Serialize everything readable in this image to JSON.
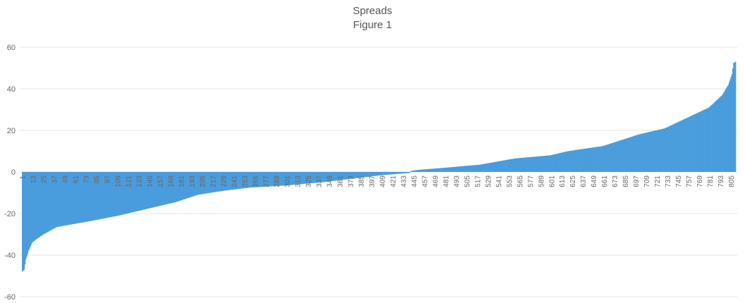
{
  "chart_data": {
    "type": "bar",
    "title": "Spreads",
    "subtitle": "Figure 1",
    "xlabel": "",
    "ylabel": "",
    "bar_color": "#4a9ddc",
    "grid": true,
    "ylim": [
      -60,
      60
    ],
    "yticks": [
      -60,
      -40,
      -20,
      0,
      20,
      40,
      60
    ],
    "n_categories": 810,
    "category_start": 1,
    "xtick_labels": [
      "1",
      "13",
      "25",
      "37",
      "49",
      "61",
      "73",
      "85",
      "97",
      "109",
      "121",
      "133",
      "145",
      "157",
      "169",
      "181",
      "193",
      "205",
      "217",
      "229",
      "241",
      "253",
      "265",
      "277",
      "289",
      "301",
      "313",
      "325",
      "337",
      "349",
      "361",
      "373",
      "385",
      "397",
      "409",
      "421",
      "433",
      "445",
      "457",
      "469",
      "481",
      "493",
      "505",
      "517",
      "529",
      "541",
      "553",
      "565",
      "577",
      "589",
      "601",
      "613",
      "625",
      "637",
      "649",
      "661",
      "673",
      "685",
      "697",
      "709",
      "721",
      "733",
      "745",
      "757",
      "769",
      "781",
      "793",
      "805"
    ],
    "sorted_value_profile": [
      [
        1,
        -48
      ],
      [
        3,
        -47
      ],
      [
        5,
        -42
      ],
      [
        8,
        -38
      ],
      [
        12,
        -34
      ],
      [
        18,
        -32
      ],
      [
        25,
        -30
      ],
      [
        40,
        -26.5
      ],
      [
        60,
        -25
      ],
      [
        80,
        -23.5
      ],
      [
        110,
        -21
      ],
      [
        150,
        -17
      ],
      [
        175,
        -14.5
      ],
      [
        200,
        -11
      ],
      [
        230,
        -9
      ],
      [
        260,
        -7.5
      ],
      [
        300,
        -6.5
      ],
      [
        340,
        -5
      ],
      [
        380,
        -3
      ],
      [
        410,
        -1.5
      ],
      [
        440,
        -0.5
      ],
      [
        442,
        0.5
      ],
      [
        450,
        1
      ],
      [
        480,
        2
      ],
      [
        520,
        3.5
      ],
      [
        560,
        6.5
      ],
      [
        600,
        8
      ],
      [
        620,
        10
      ],
      [
        660,
        12.5
      ],
      [
        700,
        18
      ],
      [
        730,
        21
      ],
      [
        760,
        27
      ],
      [
        780,
        31
      ],
      [
        795,
        37
      ],
      [
        802,
        42
      ],
      [
        806,
        47
      ],
      [
        808,
        52.5
      ],
      [
        810,
        53
      ]
    ]
  }
}
